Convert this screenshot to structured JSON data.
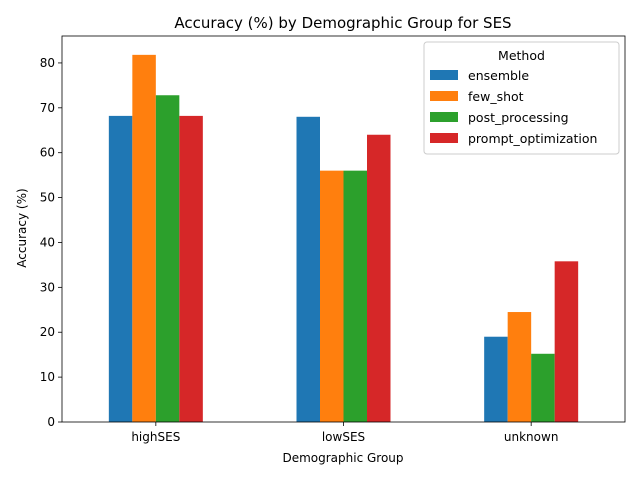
{
  "chart_data": {
    "type": "bar",
    "title": "Accuracy (%) by Demographic Group for SES",
    "xlabel": "Demographic Group",
    "ylabel": "Accuracy (%)",
    "categories": [
      "highSES",
      "lowSES",
      "unknown"
    ],
    "series": [
      {
        "name": "ensemble",
        "color": "#1f77b4",
        "values": [
          68.2,
          68.0,
          19.0
        ]
      },
      {
        "name": "few_shot",
        "color": "#ff7f0e",
        "values": [
          81.8,
          56.0,
          24.5
        ]
      },
      {
        "name": "post_processing",
        "color": "#2ca02c",
        "values": [
          72.8,
          56.0,
          15.2
        ]
      },
      {
        "name": "prompt_optimization",
        "color": "#d62728",
        "values": [
          68.2,
          64.0,
          35.8
        ]
      }
    ],
    "ylim": [
      0,
      86
    ],
    "yticks": [
      0,
      10,
      20,
      30,
      40,
      50,
      60,
      70,
      80
    ],
    "legend": {
      "title": "Method",
      "placement": "top-right"
    },
    "grid": false
  }
}
